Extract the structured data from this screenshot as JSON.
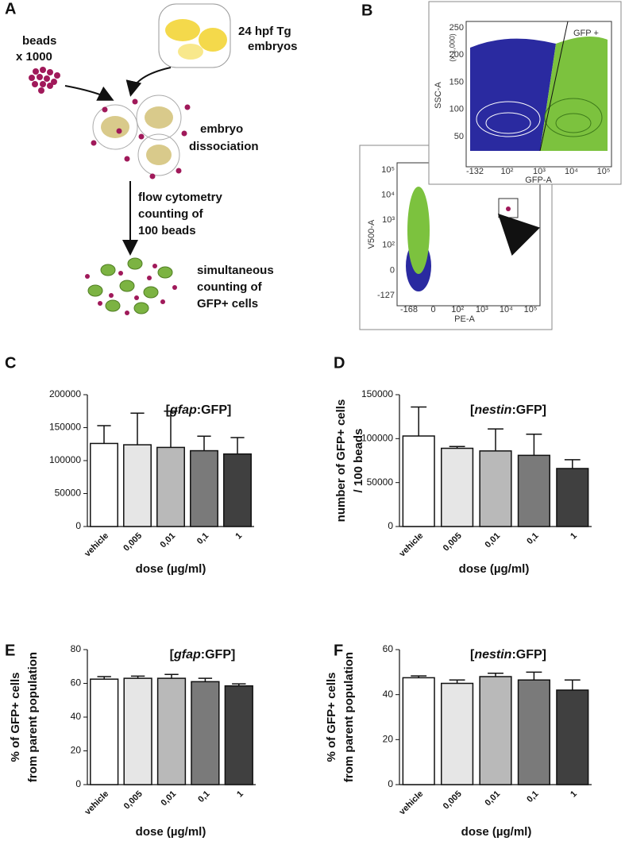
{
  "panel_a": {
    "label": "A",
    "embryos": [
      "24 hpf Tg",
      "embryos"
    ],
    "beads": [
      "beads",
      "x 1000"
    ],
    "dissociation": [
      "embryo",
      "dissociation"
    ],
    "flow": [
      "flow cytometry",
      "counting of",
      "100 beads"
    ],
    "counting": [
      "simultaneous",
      "counting of",
      "GFP+ cells"
    ]
  },
  "panel_b": {
    "label": "B",
    "top_plot": {
      "gate": "GFP +",
      "ylabel": "SSC-A",
      "yunit": "(x 1,000)",
      "yticks": [
        "250",
        "200",
        "150",
        "100",
        "50"
      ],
      "xticks": [
        "-132",
        "10²",
        "10³",
        "10⁴",
        "10⁵"
      ],
      "xlabel": "GFP-A"
    },
    "bottom_plot": {
      "ylabel": "V500-A",
      "yticks": [
        "10⁵",
        "10⁴",
        "10³",
        "10²",
        "0",
        "-127"
      ],
      "xticks": [
        "-168",
        "0",
        "10²",
        "10³",
        "10⁴",
        "10⁵"
      ],
      "xlabel": "PE-A"
    }
  },
  "chart_data": [
    {
      "type": "bar",
      "label": "C",
      "title": [
        "[",
        "gfap",
        ":GFP]"
      ],
      "categories": [
        "vehicle",
        "0,005",
        "0,01",
        "0,1",
        "1"
      ],
      "values": [
        126000,
        124000,
        120000,
        115000,
        110000
      ],
      "errors": [
        27000,
        48000,
        55000,
        22000,
        25000
      ],
      "colors": [
        "#ffffff",
        "#e6e6e6",
        "#b9b9b9",
        "#7a7a7a",
        "#404040"
      ],
      "xlabel": "dose (µg/ml)",
      "ylim": [
        0,
        200000
      ],
      "yticks": [
        0,
        50000,
        100000,
        150000,
        200000
      ],
      "grid": false
    },
    {
      "type": "bar",
      "label": "D",
      "title": [
        "[",
        "nestin",
        ":GFP]"
      ],
      "categories": [
        "vehicle",
        "0,005",
        "0,01",
        "0,1",
        "1"
      ],
      "values": [
        103000,
        89000,
        86000,
        81000,
        66000
      ],
      "errors": [
        33000,
        2000,
        25000,
        24000,
        10000
      ],
      "colors": [
        "#ffffff",
        "#e6e6e6",
        "#b9b9b9",
        "#7a7a7a",
        "#404040"
      ],
      "xlabel": "dose (µg/ml)",
      "ylabel": [
        "number of GFP+ cells",
        "/ 100 beads"
      ],
      "ylim": [
        0,
        150000
      ],
      "yticks": [
        0,
        50000,
        100000,
        150000
      ],
      "grid": false
    },
    {
      "type": "bar",
      "label": "E",
      "title": [
        "[",
        "gfap",
        ":GFP]"
      ],
      "categories": [
        "vehicle",
        "0,005",
        "0,01",
        "0,1",
        "1"
      ],
      "values": [
        62.5,
        63,
        63,
        61,
        58.5
      ],
      "errors": [
        1.5,
        1.3,
        2.3,
        2,
        1.2
      ],
      "colors": [
        "#ffffff",
        "#e6e6e6",
        "#b9b9b9",
        "#7a7a7a",
        "#404040"
      ],
      "xlabel": "dose (µg/ml)",
      "ylabel": [
        "% of GFP+ cells",
        "from parent population"
      ],
      "ylim": [
        0,
        80
      ],
      "yticks": [
        0,
        20,
        40,
        60,
        80
      ],
      "grid": false
    },
    {
      "type": "bar",
      "label": "F",
      "title": [
        "[",
        "nestin",
        ":GFP]"
      ],
      "categories": [
        "vehicle",
        "0,005",
        "0,01",
        "0,1",
        "1"
      ],
      "values": [
        47.5,
        45,
        48,
        46.5,
        42
      ],
      "errors": [
        0.8,
        1.5,
        1.5,
        3.5,
        4.5
      ],
      "colors": [
        "#ffffff",
        "#e6e6e6",
        "#b9b9b9",
        "#7a7a7a",
        "#404040"
      ],
      "xlabel": "dose (µg/ml)",
      "ylabel": [
        "% of GFP+ cells",
        "from parent population"
      ],
      "ylim": [
        0,
        60
      ],
      "yticks": [
        0,
        20,
        40,
        60
      ],
      "grid": false
    }
  ]
}
